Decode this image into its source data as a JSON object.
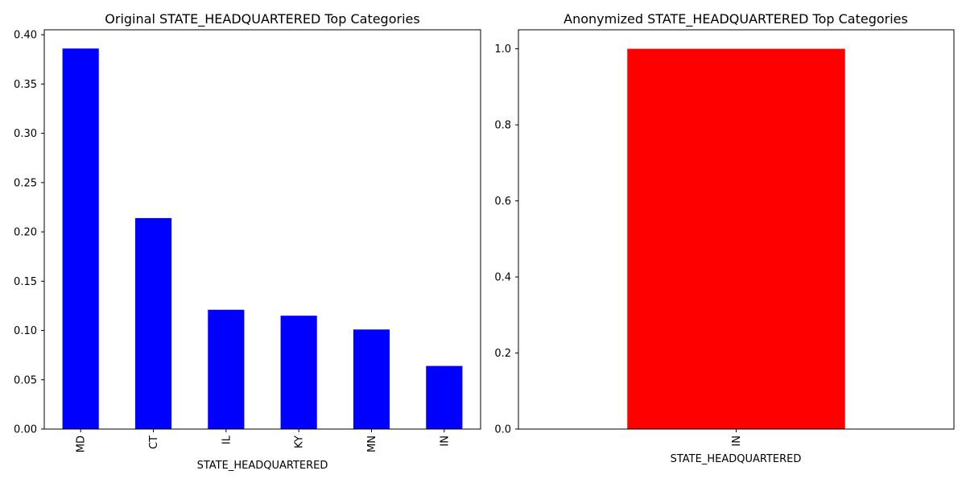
{
  "chart_data": [
    {
      "type": "bar",
      "title": "Original STATE_HEADQUARTERED Top Categories",
      "xlabel": "STATE_HEADQUARTERED",
      "ylabel": "",
      "categories": [
        "MD",
        "CT",
        "IL",
        "KY",
        "MN",
        "IN"
      ],
      "values": [
        0.386,
        0.214,
        0.121,
        0.115,
        0.101,
        0.064
      ],
      "ylim": [
        0,
        0.405
      ],
      "yticks": [
        "0.00",
        "0.05",
        "0.10",
        "0.15",
        "0.20",
        "0.25",
        "0.30",
        "0.35",
        "0.40"
      ],
      "color": "#0000ff",
      "grid": false
    },
    {
      "type": "bar",
      "title": "Anonymized STATE_HEADQUARTERED Top Categories",
      "xlabel": "STATE_HEADQUARTERED",
      "ylabel": "",
      "categories": [
        "IN"
      ],
      "values": [
        1.0
      ],
      "ylim": [
        0,
        1.05
      ],
      "yticks": [
        "0.0",
        "0.2",
        "0.4",
        "0.6",
        "0.8",
        "1.0"
      ],
      "color": "#ff0000",
      "grid": false
    }
  ]
}
